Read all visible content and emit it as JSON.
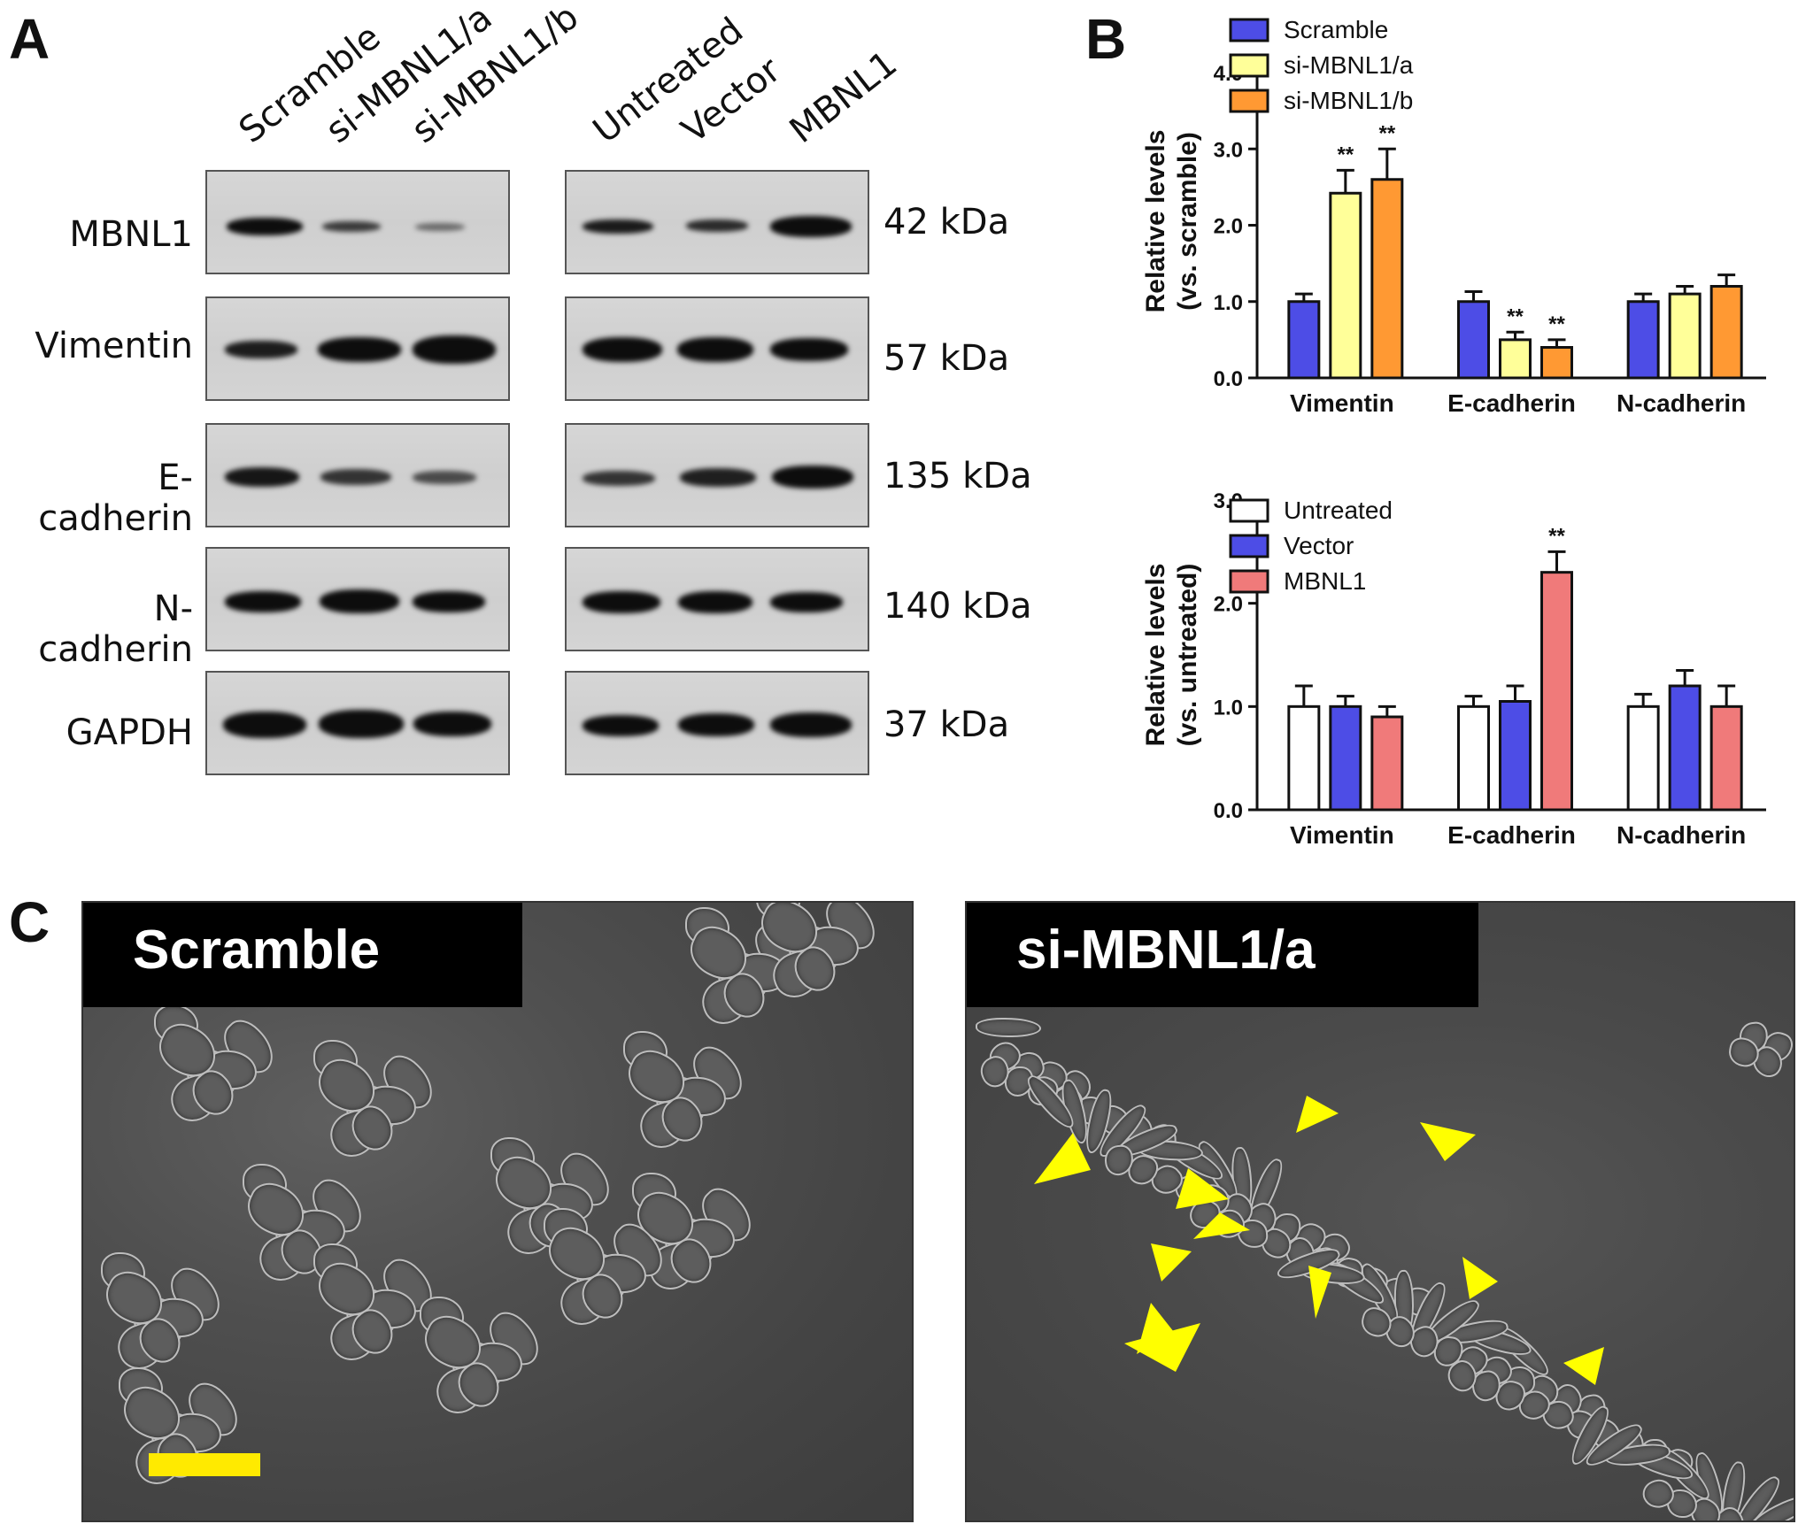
{
  "panels": {
    "a": "A",
    "b": "B",
    "c": "C"
  },
  "western": {
    "left_lanes": [
      "Scramble",
      "si-MBNL1/a",
      "si-MBNL1/b"
    ],
    "right_lanes": [
      "Untreated",
      "Vector",
      "MBNL1"
    ],
    "rows": [
      {
        "name": "MBNL1",
        "kda": "42 kDa"
      },
      {
        "name": "Vimentin",
        "kda": "57 kDa"
      },
      {
        "name": "E-cadherin",
        "kda": "135 kDa"
      },
      {
        "name": "N-cadherin",
        "kda": "140 kDa"
      },
      {
        "name": "GAPDH",
        "kda": "37 kDa"
      }
    ]
  },
  "colors": {
    "scramble": "#4d4de6",
    "si_a": "#ffff99",
    "si_b": "#ff9933",
    "untreated": "#ffffff",
    "vector": "#4d4de6",
    "mbnl1": "#f07a7a",
    "arrowhead": "#ffff00",
    "scale_bar": "#ffea00"
  },
  "chart_data": [
    {
      "type": "bar",
      "categories": [
        "Vimentin",
        "E-cadherin",
        "N-cadherin"
      ],
      "ylabel": "Relative levels (vs. scramble)",
      "ylim": [
        0,
        4.0
      ],
      "yticks": [
        "0.0",
        "1.0",
        "2.0",
        "3.0",
        "4.0"
      ],
      "legend_position": "top-left",
      "series": [
        {
          "name": "Scramble",
          "values": [
            1.0,
            1.0,
            1.0
          ],
          "errors": [
            0.1,
            0.13,
            0.1
          ]
        },
        {
          "name": "si-MBNL1/a",
          "values": [
            2.42,
            0.5,
            1.1
          ],
          "errors": [
            0.3,
            0.1,
            0.1
          ]
        },
        {
          "name": "si-MBNL1/b",
          "values": [
            2.6,
            0.4,
            1.2
          ],
          "errors": [
            0.4,
            0.1,
            0.15
          ]
        }
      ],
      "annotations": [
        {
          "category": "Vimentin",
          "series": "si-MBNL1/a",
          "text": "**"
        },
        {
          "category": "Vimentin",
          "series": "si-MBNL1/b",
          "text": "**"
        },
        {
          "category": "E-cadherin",
          "series": "si-MBNL1/a",
          "text": "**"
        },
        {
          "category": "E-cadherin",
          "series": "si-MBNL1/b",
          "text": "**"
        }
      ]
    },
    {
      "type": "bar",
      "categories": [
        "Vimentin",
        "E-cadherin",
        "N-cadherin"
      ],
      "ylabel": "Relative levels (vs. untreated)",
      "ylim": [
        0,
        3.0
      ],
      "yticks": [
        "0.0",
        "1.0",
        "2.0",
        "3.0"
      ],
      "legend_position": "top-left",
      "series": [
        {
          "name": "Untreated",
          "values": [
            1.0,
            1.0,
            1.0
          ],
          "errors": [
            0.2,
            0.1,
            0.12
          ]
        },
        {
          "name": "Vector",
          "values": [
            1.0,
            1.05,
            1.2
          ],
          "errors": [
            0.1,
            0.15,
            0.15
          ]
        },
        {
          "name": "MBNL1",
          "values": [
            0.9,
            2.3,
            1.0
          ],
          "errors": [
            0.1,
            0.2,
            0.2
          ]
        }
      ],
      "annotations": [
        {
          "category": "E-cadherin",
          "series": "MBNL1",
          "text": "**"
        }
      ]
    }
  ],
  "micrographs": {
    "left_title": "Scramble",
    "right_title": "si-MBNL1/a"
  }
}
